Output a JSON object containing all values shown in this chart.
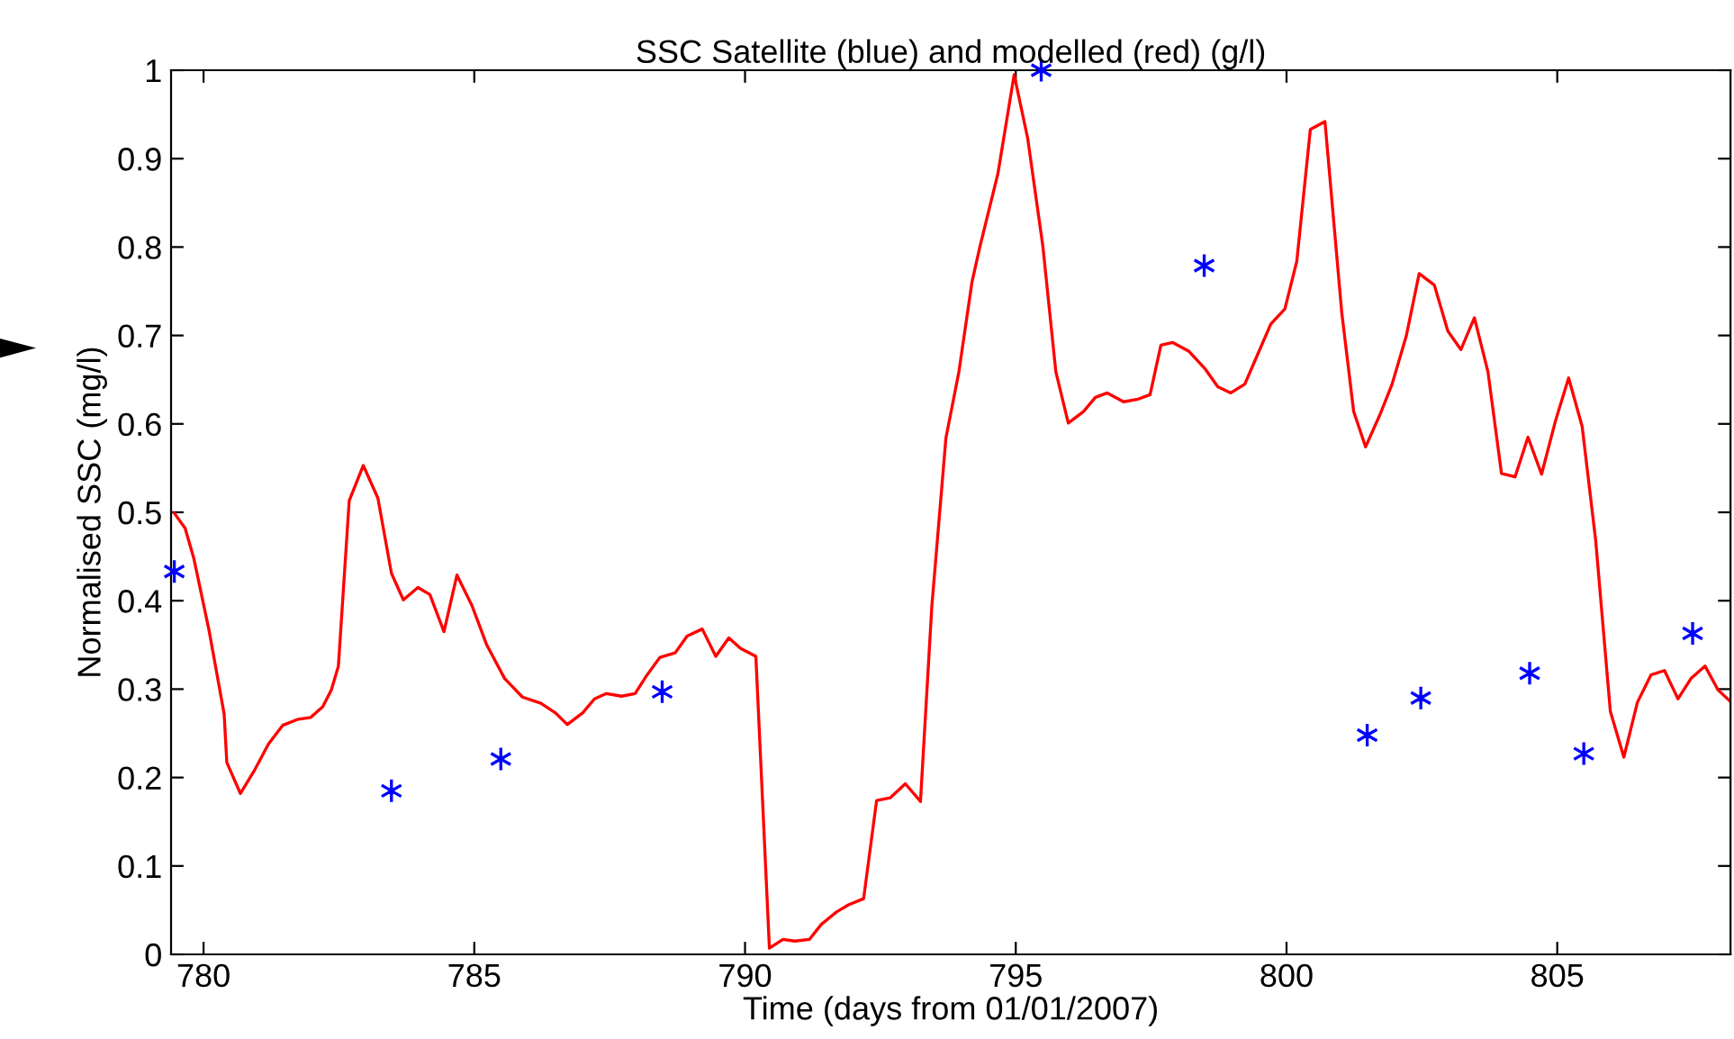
{
  "chart_data": {
    "type": "line",
    "title": "SSC Satellite (blue) and modelled (red) (g/l)",
    "xlabel": "Time (days from 01/01/2007)",
    "ylabel": "Normalised SSC (mg/l)",
    "xlim": [
      779.4,
      808.2
    ],
    "xticks": [
      780,
      785,
      790,
      795,
      800,
      805
    ],
    "ylim": [
      0,
      1
    ],
    "yticks": [
      0,
      0.1,
      0.2,
      0.3,
      0.4,
      0.5,
      0.6,
      0.7,
      0.8,
      0.9,
      1
    ],
    "grid": false,
    "legend": false,
    "series": [
      {
        "color": "#ff0000",
        "marker": "none",
        "line_style": "solid",
        "x": [
          779.46,
          779.66,
          779.82,
          780.1,
          780.38,
          780.43,
          780.68,
          780.93,
          781.2,
          781.46,
          781.75,
          781.98,
          782.2,
          782.36,
          782.49,
          782.69,
          782.95,
          783.22,
          783.47,
          783.69,
          783.96,
          784.18,
          784.44,
          784.68,
          784.96,
          785.23,
          785.56,
          785.89,
          786.23,
          786.5,
          786.72,
          787.0,
          787.22,
          787.44,
          787.72,
          787.97,
          788.19,
          788.43,
          788.71,
          788.93,
          789.21,
          789.46,
          789.7,
          789.92,
          790.2,
          790.45,
          790.7,
          790.92,
          791.19,
          791.41,
          791.69,
          791.91,
          792.19,
          792.43,
          792.68,
          792.96,
          793.24,
          793.45,
          793.71,
          793.95,
          794.19,
          794.34,
          794.67,
          794.97,
          795.22,
          795.5,
          795.74,
          795.97,
          796.25,
          796.47,
          796.69,
          796.99,
          797.26,
          797.48,
          797.68,
          797.9,
          798.2,
          798.5,
          798.73,
          798.97,
          799.23,
          799.47,
          799.71,
          799.97,
          800.19,
          800.44,
          800.71,
          801.02,
          801.24,
          801.46,
          801.73,
          801.95,
          802.21,
          802.45,
          802.73,
          802.98,
          803.22,
          803.47,
          803.72,
          803.97,
          804.22,
          804.46,
          804.71,
          804.97,
          805.21,
          805.46,
          805.71,
          805.98,
          806.23,
          806.48,
          806.73,
          806.98,
          807.23,
          807.47,
          807.73,
          807.97,
          808.18
        ],
        "values": [
          0.499,
          0.482,
          0.448,
          0.367,
          0.272,
          0.217,
          0.182,
          0.207,
          0.238,
          0.259,
          0.266,
          0.268,
          0.28,
          0.299,
          0.326,
          0.513,
          0.553,
          0.516,
          0.431,
          0.401,
          0.415,
          0.407,
          0.365,
          0.429,
          0.394,
          0.35,
          0.312,
          0.291,
          0.284,
          0.273,
          0.26,
          0.273,
          0.289,
          0.295,
          0.292,
          0.295,
          0.316,
          0.336,
          0.341,
          0.36,
          0.368,
          0.337,
          0.358,
          0.346,
          0.337,
          0.007,
          0.017,
          0.015,
          0.017,
          0.034,
          0.048,
          0.056,
          0.063,
          0.174,
          0.177,
          0.193,
          0.173,
          0.394,
          0.584,
          0.659,
          0.76,
          0.801,
          0.883,
          0.995,
          0.923,
          0.801,
          0.659,
          0.601,
          0.614,
          0.63,
          0.635,
          0.625,
          0.628,
          0.633,
          0.689,
          0.692,
          0.682,
          0.662,
          0.642,
          0.635,
          0.645,
          0.679,
          0.713,
          0.73,
          0.784,
          0.933,
          0.942,
          0.726,
          0.614,
          0.574,
          0.611,
          0.645,
          0.699,
          0.77,
          0.757,
          0.705,
          0.684,
          0.72,
          0.659,
          0.544,
          0.54,
          0.585,
          0.543,
          0.604,
          0.652,
          0.597,
          0.468,
          0.275,
          0.223,
          0.285,
          0.316,
          0.321,
          0.289,
          0.312,
          0.326,
          0.299,
          0.287
        ]
      },
      {
        "type": "scatter",
        "color": "#0000ff",
        "marker": "cross",
        "x": [
          779.46,
          783.47,
          785.49,
          788.47,
          795.47,
          798.48,
          801.49,
          802.48,
          804.49,
          805.49,
          807.5
        ],
        "values": [
          0.433,
          0.185,
          0.221,
          0.297,
          1.0,
          0.779,
          0.248,
          0.29,
          0.318,
          0.227,
          0.363
        ]
      }
    ]
  }
}
